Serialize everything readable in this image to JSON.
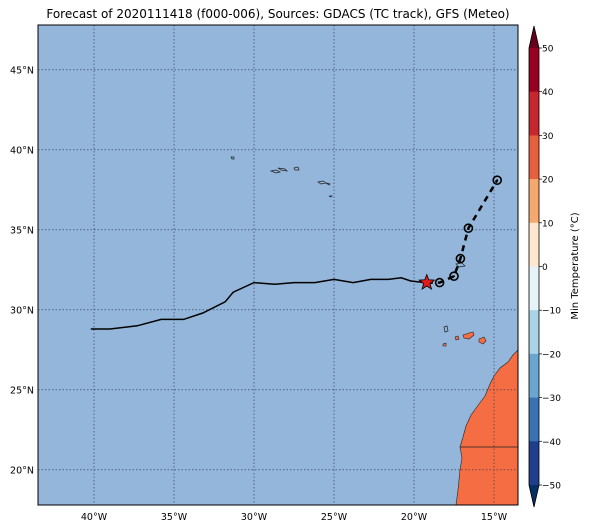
{
  "title": "Forecast of 2020111418 (f000-006), Sources: GDACS (TC track), GFS (Meteo)",
  "colors": {
    "ocean": "#93b6da",
    "land": "#f46d43",
    "track": "#000000",
    "storm_marker": "#e31a1c"
  },
  "map": {
    "lon_ticks": [
      "40°W",
      "35°W",
      "30°W",
      "25°W",
      "20°W",
      "15°W"
    ],
    "lat_ticks": [
      "45°N",
      "40°N",
      "35°N",
      "30°N",
      "25°N",
      "20°N"
    ],
    "lon_range": [
      -43.5,
      -13.5
    ],
    "lat_range": [
      17.8,
      47.8
    ],
    "gridlines": true
  },
  "track": {
    "history": [
      [
        -40.2,
        28.8
      ],
      [
        -39.0,
        28.8
      ],
      [
        -37.3,
        29.0
      ],
      [
        -35.8,
        29.4
      ],
      [
        -34.4,
        29.4
      ],
      [
        -33.2,
        29.8
      ],
      [
        -31.8,
        30.5
      ],
      [
        -31.3,
        31.1
      ],
      [
        -30.0,
        31.7
      ],
      [
        -28.7,
        31.6
      ],
      [
        -27.5,
        31.7
      ],
      [
        -26.2,
        31.7
      ],
      [
        -25.0,
        31.9
      ],
      [
        -23.8,
        31.7
      ],
      [
        -22.7,
        31.9
      ],
      [
        -21.6,
        31.9
      ],
      [
        -20.8,
        32.0
      ],
      [
        -20.2,
        31.8
      ],
      [
        -19.3,
        31.7
      ]
    ],
    "current": [
      -19.2,
      31.7
    ],
    "forecast": [
      [
        -18.4,
        31.7
      ],
      [
        -17.5,
        32.1
      ],
      [
        -17.1,
        33.2
      ],
      [
        -16.6,
        35.1
      ],
      [
        -14.8,
        38.1
      ]
    ]
  },
  "colorbar": {
    "label": "Min Temperature (°C)",
    "ticks": [
      50,
      40,
      30,
      20,
      10,
      0,
      -10,
      -20,
      -30,
      -40,
      -50
    ],
    "tick_labels": [
      "50",
      "40",
      "30",
      "20",
      "10",
      "0",
      "−10",
      "−20",
      "−30",
      "−40",
      "−50"
    ],
    "colors": [
      "#67001f",
      "#b2182b",
      "#d6604d",
      "#f4a582",
      "#fddbc7",
      "#f7f7f7",
      "#d1e5f0",
      "#92c5de",
      "#4393c3",
      "#2166ac",
      "#053061"
    ]
  }
}
